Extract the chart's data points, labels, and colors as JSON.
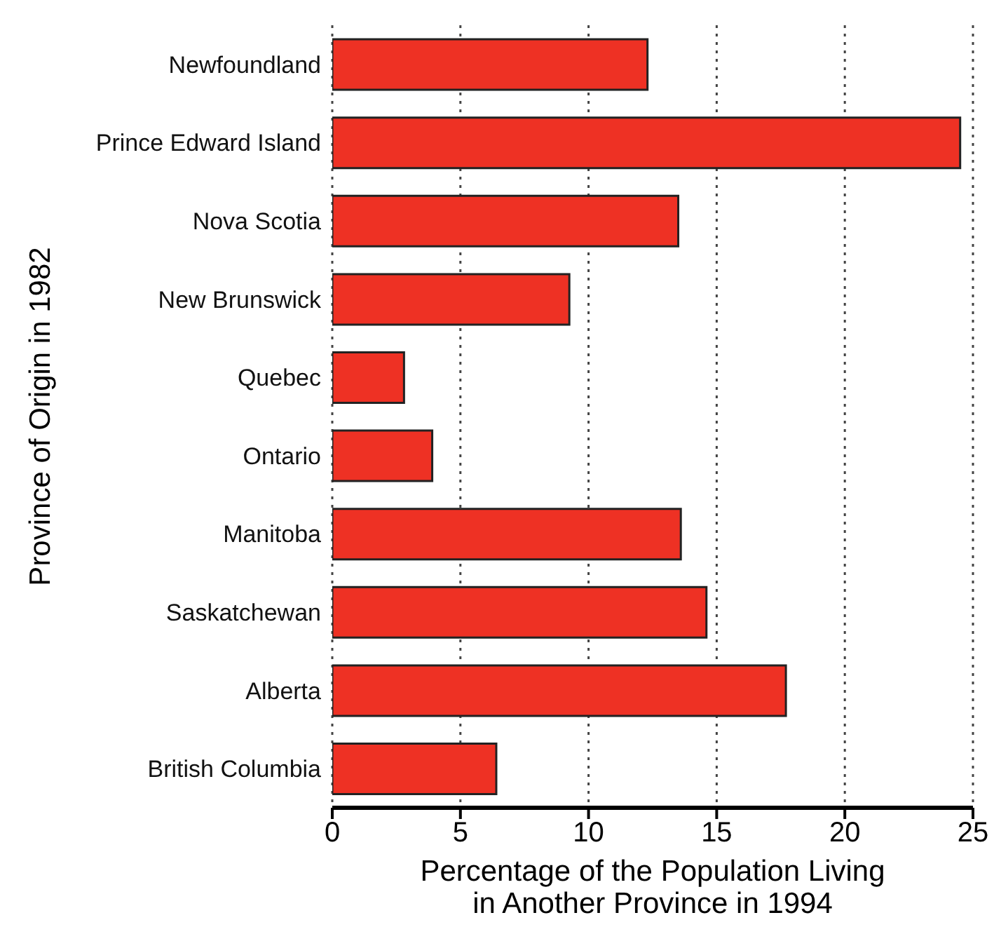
{
  "chart_data": {
    "type": "bar",
    "orientation": "horizontal",
    "xlabel": "Percentage of the Population Living\nin Another Province in 1994",
    "ylabel": "Province of Origin in 1982",
    "categories": [
      "Newfoundland",
      "Prince Edward Island",
      "Nova Scotia",
      "New Brunswick",
      "Quebec",
      "Ontario",
      "Manitoba",
      "Saskatchewan",
      "Alberta",
      "British Columbia"
    ],
    "values": [
      12.3,
      24.5,
      13.5,
      9.25,
      2.8,
      3.9,
      13.6,
      14.6,
      17.7,
      6.4
    ],
    "color": "#ee3124",
    "xlim": [
      0,
      25
    ],
    "xticks": [
      0,
      5,
      10,
      15,
      20,
      25
    ],
    "grid": "x"
  }
}
